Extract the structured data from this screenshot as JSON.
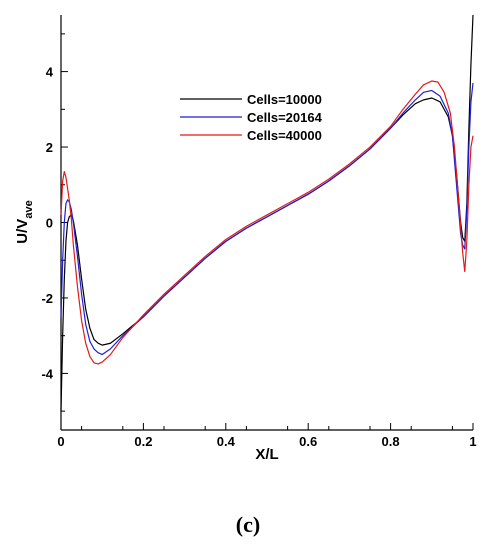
{
  "chart_data": {
    "type": "line",
    "xlabel": "X/L",
    "ylabel_main": "U/V",
    "ylabel_sub": "ave",
    "xlim": [
      0,
      1
    ],
    "ylim": [
      -5.5,
      5.5
    ],
    "xticks": [
      0,
      0.2,
      0.4,
      0.6,
      0.8,
      1
    ],
    "xtick_labels": [
      "0",
      "0.2",
      "0.4",
      "0.6",
      "0.8",
      "1"
    ],
    "yticks": [
      -4,
      -2,
      0,
      2,
      4
    ],
    "ytick_labels": [
      "-4",
      "-2",
      "0",
      "2",
      "4"
    ],
    "legend_position": "upper-middle",
    "grid": false,
    "caption": "(c)",
    "series": [
      {
        "name": "Cells=10000",
        "color": "#000000",
        "points": [
          [
            0.0,
            -5.0
          ],
          [
            0.004,
            -3.0
          ],
          [
            0.008,
            -1.5
          ],
          [
            0.012,
            -0.5
          ],
          [
            0.016,
            0.0
          ],
          [
            0.02,
            0.15
          ],
          [
            0.025,
            0.2
          ],
          [
            0.03,
            0.05
          ],
          [
            0.04,
            -0.6
          ],
          [
            0.05,
            -1.5
          ],
          [
            0.06,
            -2.3
          ],
          [
            0.07,
            -2.8
          ],
          [
            0.08,
            -3.1
          ],
          [
            0.09,
            -3.2
          ],
          [
            0.1,
            -3.25
          ],
          [
            0.12,
            -3.2
          ],
          [
            0.15,
            -2.95
          ],
          [
            0.2,
            -2.5
          ],
          [
            0.25,
            -1.95
          ],
          [
            0.3,
            -1.45
          ],
          [
            0.35,
            -0.95
          ],
          [
            0.4,
            -0.5
          ],
          [
            0.45,
            -0.15
          ],
          [
            0.5,
            0.15
          ],
          [
            0.55,
            0.45
          ],
          [
            0.6,
            0.75
          ],
          [
            0.65,
            1.1
          ],
          [
            0.7,
            1.5
          ],
          [
            0.75,
            1.95
          ],
          [
            0.8,
            2.5
          ],
          [
            0.83,
            2.85
          ],
          [
            0.86,
            3.15
          ],
          [
            0.88,
            3.25
          ],
          [
            0.9,
            3.3
          ],
          [
            0.92,
            3.2
          ],
          [
            0.94,
            2.8
          ],
          [
            0.95,
            2.3
          ],
          [
            0.96,
            1.3
          ],
          [
            0.97,
            0.0
          ],
          [
            0.975,
            -0.4
          ],
          [
            0.98,
            -0.5
          ],
          [
            0.985,
            0.5
          ],
          [
            0.99,
            2.5
          ],
          [
            0.995,
            4.2
          ],
          [
            1.0,
            5.5
          ]
        ]
      },
      {
        "name": "Cells=20164",
        "color": "#1f1fd6",
        "points": [
          [
            0.0,
            -2.5
          ],
          [
            0.004,
            -1.0
          ],
          [
            0.008,
            0.0
          ],
          [
            0.012,
            0.5
          ],
          [
            0.016,
            0.6
          ],
          [
            0.02,
            0.55
          ],
          [
            0.025,
            0.35
          ],
          [
            0.03,
            0.0
          ],
          [
            0.04,
            -0.9
          ],
          [
            0.05,
            -1.9
          ],
          [
            0.06,
            -2.7
          ],
          [
            0.07,
            -3.15
          ],
          [
            0.08,
            -3.35
          ],
          [
            0.09,
            -3.45
          ],
          [
            0.1,
            -3.5
          ],
          [
            0.12,
            -3.35
          ],
          [
            0.15,
            -3.0
          ],
          [
            0.2,
            -2.5
          ],
          [
            0.25,
            -1.95
          ],
          [
            0.3,
            -1.45
          ],
          [
            0.35,
            -0.95
          ],
          [
            0.4,
            -0.5
          ],
          [
            0.45,
            -0.15
          ],
          [
            0.5,
            0.15
          ],
          [
            0.55,
            0.45
          ],
          [
            0.6,
            0.75
          ],
          [
            0.65,
            1.1
          ],
          [
            0.7,
            1.5
          ],
          [
            0.75,
            1.95
          ],
          [
            0.8,
            2.5
          ],
          [
            0.83,
            2.9
          ],
          [
            0.86,
            3.25
          ],
          [
            0.88,
            3.45
          ],
          [
            0.9,
            3.5
          ],
          [
            0.92,
            3.35
          ],
          [
            0.94,
            2.9
          ],
          [
            0.95,
            2.3
          ],
          [
            0.96,
            1.0
          ],
          [
            0.97,
            -0.3
          ],
          [
            0.975,
            -0.6
          ],
          [
            0.98,
            -0.7
          ],
          [
            0.985,
            0.3
          ],
          [
            0.99,
            2.0
          ],
          [
            0.995,
            3.2
          ],
          [
            1.0,
            3.7
          ]
        ]
      },
      {
        "name": "Cells=40000",
        "color": "#e01b1b",
        "points": [
          [
            0.0,
            0.2
          ],
          [
            0.004,
            1.1
          ],
          [
            0.008,
            1.35
          ],
          [
            0.012,
            1.2
          ],
          [
            0.016,
            0.9
          ],
          [
            0.02,
            0.6
          ],
          [
            0.025,
            0.1
          ],
          [
            0.03,
            -0.6
          ],
          [
            0.04,
            -1.7
          ],
          [
            0.05,
            -2.6
          ],
          [
            0.06,
            -3.2
          ],
          [
            0.07,
            -3.55
          ],
          [
            0.08,
            -3.72
          ],
          [
            0.09,
            -3.75
          ],
          [
            0.1,
            -3.7
          ],
          [
            0.12,
            -3.5
          ],
          [
            0.15,
            -3.05
          ],
          [
            0.2,
            -2.45
          ],
          [
            0.25,
            -1.9
          ],
          [
            0.3,
            -1.4
          ],
          [
            0.35,
            -0.9
          ],
          [
            0.4,
            -0.45
          ],
          [
            0.45,
            -0.1
          ],
          [
            0.5,
            0.2
          ],
          [
            0.55,
            0.5
          ],
          [
            0.6,
            0.8
          ],
          [
            0.65,
            1.15
          ],
          [
            0.7,
            1.55
          ],
          [
            0.75,
            2.0
          ],
          [
            0.8,
            2.55
          ],
          [
            0.83,
            3.0
          ],
          [
            0.86,
            3.4
          ],
          [
            0.88,
            3.65
          ],
          [
            0.9,
            3.75
          ],
          [
            0.915,
            3.72
          ],
          [
            0.93,
            3.45
          ],
          [
            0.945,
            2.9
          ],
          [
            0.955,
            2.0
          ],
          [
            0.965,
            0.6
          ],
          [
            0.975,
            -0.8
          ],
          [
            0.98,
            -1.3
          ],
          [
            0.985,
            -0.5
          ],
          [
            0.99,
            1.0
          ],
          [
            0.995,
            2.0
          ],
          [
            1.0,
            2.3
          ]
        ]
      }
    ]
  }
}
